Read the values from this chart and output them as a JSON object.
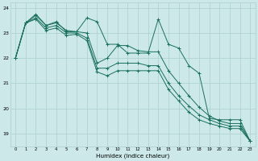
{
  "xlabel": "Humidex (Indice chaleur)",
  "background_color": "#cce8e8",
  "grid_color": "#aacfcf",
  "line_color": "#1a7060",
  "x": [
    0,
    1,
    2,
    3,
    4,
    5,
    6,
    7,
    8,
    9,
    10,
    11,
    12,
    13,
    14,
    15,
    16,
    17,
    18,
    19,
    20,
    21,
    22,
    23
  ],
  "series": [
    [
      22.0,
      23.4,
      23.75,
      23.3,
      23.45,
      23.05,
      23.05,
      23.6,
      23.45,
      22.55,
      22.55,
      22.2,
      22.2,
      22.2,
      23.55,
      22.55,
      22.4,
      21.7,
      21.4,
      19.6,
      19.55,
      19.55,
      19.55,
      18.7
    ],
    [
      22.0,
      23.4,
      23.7,
      23.3,
      23.4,
      23.1,
      23.05,
      23.0,
      21.8,
      22.0,
      22.5,
      22.5,
      22.3,
      22.25,
      22.25,
      21.5,
      21.0,
      20.5,
      20.05,
      19.7,
      19.5,
      19.4,
      19.4,
      18.7
    ],
    [
      22.0,
      23.4,
      23.6,
      23.2,
      23.3,
      23.0,
      23.0,
      22.8,
      21.6,
      21.6,
      21.8,
      21.8,
      21.8,
      21.7,
      21.7,
      21.0,
      20.5,
      20.1,
      19.75,
      19.55,
      19.4,
      19.3,
      19.3,
      18.7
    ],
    [
      22.0,
      23.4,
      23.55,
      23.1,
      23.2,
      22.9,
      22.95,
      22.7,
      21.45,
      21.3,
      21.5,
      21.5,
      21.5,
      21.5,
      21.5,
      20.75,
      20.3,
      19.85,
      19.55,
      19.4,
      19.3,
      19.2,
      19.2,
      18.7
    ]
  ],
  "ylim": [
    18.5,
    24.2
  ],
  "yticks": [
    19,
    20,
    21,
    22,
    23,
    24
  ],
  "xticks": [
    0,
    1,
    2,
    3,
    4,
    5,
    6,
    7,
    8,
    9,
    10,
    11,
    12,
    13,
    14,
    15,
    16,
    17,
    18,
    19,
    20,
    21,
    22,
    23
  ],
  "figsize": [
    3.2,
    2.0
  ],
  "dpi": 100
}
